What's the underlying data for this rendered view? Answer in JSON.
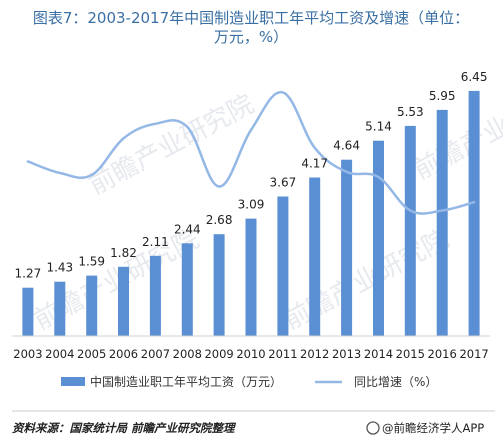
{
  "chart_data": {
    "type": "bar",
    "title_line1": "图表7：2003-2017年中国制造业职工年平均工资及增速（单位：",
    "title_line2": "万元，%）",
    "categories": [
      "2003",
      "2004",
      "2005",
      "2006",
      "2007",
      "2008",
      "2009",
      "2010",
      "2011",
      "2012",
      "2013",
      "2014",
      "2015",
      "2016",
      "2017"
    ],
    "series": [
      {
        "name": "中国制造业职工年平均工资（万元）",
        "type": "bar",
        "values": [
          1.27,
          1.43,
          1.59,
          1.82,
          2.11,
          2.44,
          2.68,
          3.09,
          3.67,
          4.17,
          4.64,
          5.14,
          5.53,
          5.95,
          6.45
        ],
        "labels": [
          "1.27",
          "1.43",
          "1.59",
          "1.82",
          "2.11",
          "2.44",
          "2.68",
          "3.09",
          "3.67",
          "4.17",
          "4.64",
          "5.14",
          "5.53",
          "5.95",
          "6.45"
        ]
      },
      {
        "name": "同比增速（%）",
        "type": "line",
        "values": [
          12.3,
          11.2,
          11.0,
          14.5,
          15.9,
          15.6,
          9.9,
          15.3,
          18.9,
          13.6,
          11.3,
          10.8,
          7.6,
          7.6,
          8.4
        ]
      }
    ],
    "ylim": [
      0,
      7
    ],
    "y2lim": [
      0,
      22
    ],
    "legend_position": "bottom",
    "grid": false,
    "colors": {
      "bar": "#5b8fd4",
      "line": "#94b8e6",
      "title": "#3a6fa3"
    }
  },
  "footer": {
    "source": "资料来源：国家统计局 前瞻产业研究院整理",
    "brand": "@前瞻经济学人APP"
  },
  "watermark": {
    "text": "前瞻产业研究院"
  }
}
